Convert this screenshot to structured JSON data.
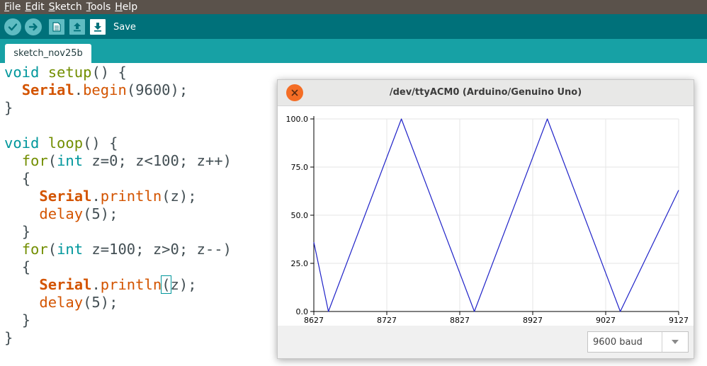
{
  "menu": {
    "items": [
      {
        "first": "F",
        "rest": "ile"
      },
      {
        "first": "E",
        "rest": "dit"
      },
      {
        "first": "S",
        "rest": "ketch"
      },
      {
        "first": "T",
        "rest": "ools"
      },
      {
        "first": "H",
        "rest": "elp"
      }
    ]
  },
  "toolbar": {
    "save_label": "Save",
    "icons": [
      "verify-icon",
      "upload-icon",
      "new-icon",
      "open-icon",
      "save-icon"
    ]
  },
  "tabs": [
    {
      "label": "sketch_nov25b"
    }
  ],
  "editor": {
    "tokens": {
      "void": "void",
      "setup": "setup",
      "loop": "loop",
      "for": "for",
      "int": "int",
      "Serial": "Serial",
      "begin": "begin",
      "println": "println",
      "delay": "delay"
    },
    "lines": {
      "l1_rest": "() {",
      "l2_args": "(9600);",
      "close": "}",
      "l5_rest": "() {",
      "for1_rest": "(",
      "for1_cond": " z=0; z<100; z++)",
      "open": "{",
      "println_arg_open": "(",
      "println_arg": "z);",
      "delay_arg": "(5);",
      "for2_cond": " z=100; z>0; z--)"
    }
  },
  "plotter": {
    "title": "/dev/ttyACM0 (Arduino/Genuino Uno)",
    "baud": "9600 baud"
  },
  "chart_data": {
    "type": "line",
    "x": [
      8627,
      8647,
      8747,
      8847,
      8947,
      9047,
      9127
    ],
    "series": [
      {
        "values": [
          36,
          0,
          100,
          0,
          100,
          0,
          63
        ]
      }
    ],
    "xlim": [
      8627,
      9127
    ],
    "ylim": [
      0,
      100
    ],
    "xticks": [
      "8627",
      "8727",
      "8827",
      "8927",
      "9027",
      "9127"
    ],
    "yticks": [
      "0.0",
      "25.0",
      "50.0",
      "75.0",
      "100.0"
    ],
    "line_color": "#1f22c8",
    "grid": true
  }
}
